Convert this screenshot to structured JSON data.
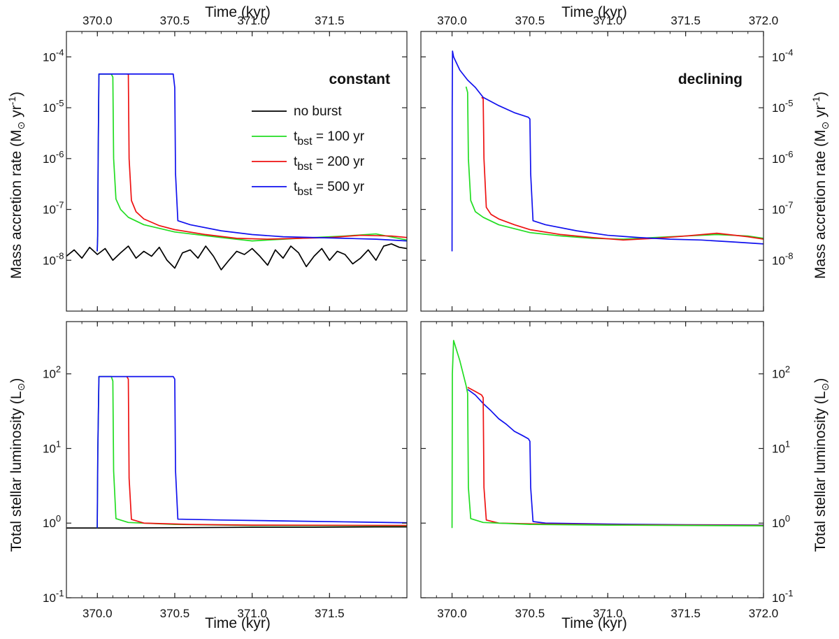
{
  "colors": {
    "no_burst": "#000000",
    "t100": "#22dd22",
    "t200": "#ee1111",
    "t500": "#1111ee"
  },
  "legend": {
    "placement": "top-right of top-left panel",
    "entries": [
      {
        "key": "no_burst",
        "main": "no burst",
        "sub": "",
        "rest": ""
      },
      {
        "key": "t100",
        "main": "t",
        "sub": "bst",
        "rest": " = 100 yr"
      },
      {
        "key": "t200",
        "main": "t",
        "sub": "bst",
        "rest": " = 200 yr"
      },
      {
        "key": "t500",
        "main": "t",
        "sub": "bst",
        "rest": " = 500 yr"
      }
    ]
  },
  "axes": {
    "time_title": "Time (kyr)",
    "mdot_title_main": "Mass accretion rate (M",
    "mdot_title_tail": " yr",
    "mdot_title_exp": "-1",
    "mdot_title_close": ")",
    "lum_title_main": "Total stellar luminosity (L",
    "lum_title_close": ")",
    "sun_symbol": "⊙"
  },
  "chart_data": [
    {
      "id": "top-left",
      "type": "line",
      "label": "constant",
      "xlabel": "Time (kyr)",
      "ylabel": "Mass accretion rate (M⊙ yr-1)",
      "xlim": [
        369.8,
        372.0
      ],
      "xticks": [
        "370.0",
        "370.5",
        "371.0",
        "371.5"
      ],
      "ylim_log10": [
        -9,
        -3.5
      ],
      "ytick_exps": [
        -8,
        -7,
        -6,
        -5,
        -4
      ],
      "yscale": "log",
      "series": [
        {
          "key": "no_burst",
          "x": [
            369.8,
            369.85,
            369.9,
            369.95,
            370.0,
            370.05,
            370.1,
            370.15,
            370.2,
            370.25,
            370.3,
            370.35,
            370.4,
            370.45,
            370.5,
            370.55,
            370.6,
            370.65,
            370.7,
            370.75,
            370.8,
            370.85,
            370.9,
            370.95,
            371.0,
            371.05,
            371.1,
            371.15,
            371.2,
            371.25,
            371.3,
            371.35,
            371.4,
            371.45,
            371.5,
            371.55,
            371.6,
            371.65,
            371.7,
            371.75,
            371.8,
            371.85,
            371.9,
            371.95,
            372.0
          ],
          "y": [
            1.2e-08,
            1.6e-08,
            1.1e-08,
            1.8e-08,
            1.3e-08,
            1.7e-08,
            1e-08,
            1.4e-08,
            1.9e-08,
            1.1e-08,
            1.5e-08,
            1.2e-08,
            1.8e-08,
            1e-08,
            7e-09,
            1.4e-08,
            1.6e-08,
            1.1e-08,
            1.9e-08,
            1.2e-08,
            6.5e-09,
            1e-08,
            1.5e-08,
            1.3e-08,
            1.7e-08,
            1.2e-08,
            8e-09,
            1.6e-08,
            1.1e-08,
            1.9e-08,
            1.4e-08,
            7.5e-09,
            1.2e-08,
            1.7e-08,
            1e-08,
            1.5e-08,
            1.3e-08,
            8.5e-09,
            1.1e-08,
            1.6e-08,
            1e-08,
            1.9e-08,
            2.1e-08,
            1.8e-08,
            1.7e-08
          ]
        },
        {
          "key": "t100",
          "x": [
            369.999,
            370.002,
            370.005,
            370.01,
            370.015,
            370.09,
            370.1,
            370.105,
            370.12,
            370.15,
            370.2,
            370.3,
            370.5,
            370.8,
            371.0,
            371.2,
            371.4,
            371.6,
            371.8,
            372.0
          ],
          "y": [
            1.5e-08,
            3e-08,
            1e-06,
            4.6e-05,
            4.6e-05,
            4.6e-05,
            4e-05,
            1e-06,
            1.6e-07,
            1e-07,
            7e-08,
            5e-08,
            3.6e-08,
            2.8e-08,
            2.4e-08,
            2.6e-08,
            2.8e-08,
            3e-08,
            3.3e-08,
            2.5e-08
          ]
        },
        {
          "key": "t200",
          "x": [
            370.19,
            370.2,
            370.205,
            370.22,
            370.25,
            370.3,
            370.4,
            370.5,
            370.7,
            370.9,
            371.1,
            371.3,
            371.5,
            371.7,
            371.9,
            372.0
          ],
          "y": [
            4.6e-05,
            4.6e-05,
            1e-06,
            1.5e-07,
            9e-08,
            6.5e-08,
            4.8e-08,
            4e-08,
            3.2e-08,
            2.7e-08,
            2.6e-08,
            2.7e-08,
            2.8e-08,
            3.1e-08,
            3e-08,
            2.8e-08
          ]
        },
        {
          "key": "t500",
          "x": [
            369.999,
            370.002,
            370.005,
            370.01,
            370.015,
            370.49,
            370.5,
            370.505,
            370.52,
            370.6,
            370.8,
            371.0,
            371.2,
            371.4,
            371.6,
            371.8,
            372.0
          ],
          "y": [
            1.5e-08,
            3e-08,
            1e-06,
            4.6e-05,
            4.6e-05,
            4.6e-05,
            2.5e-05,
            5e-07,
            6e-08,
            5e-08,
            3.8e-08,
            3.2e-08,
            2.9e-08,
            2.8e-08,
            2.7e-08,
            2.6e-08,
            2.4e-08
          ]
        }
      ]
    },
    {
      "id": "top-right",
      "type": "line",
      "label": "declining",
      "xlabel": "Time (kyr)",
      "ylabel": "Mass accretion rate (M⊙ yr-1)",
      "xlim": [
        369.8,
        372.0
      ],
      "xticks": [
        "370.0",
        "370.5",
        "371.0",
        "371.5",
        "372.0"
      ],
      "ylim_log10": [
        -9,
        -3.5
      ],
      "ytick_exps": [
        -8,
        -7,
        -6,
        -5,
        -4
      ],
      "yscale": "log",
      "series": [
        {
          "key": "t100",
          "x": [
            370.09,
            370.1,
            370.105,
            370.12,
            370.15,
            370.2,
            370.3,
            370.5,
            370.7,
            370.9,
            371.1,
            371.3,
            371.5,
            371.7,
            371.9,
            372.0
          ],
          "y": [
            2.6e-05,
            2e-05,
            1e-06,
            1.5e-07,
            9e-08,
            7e-08,
            5e-08,
            3.5e-08,
            3e-08,
            2.7e-08,
            2.6e-08,
            2.8e-08,
            3e-08,
            3.2e-08,
            3e-08,
            2.7e-08
          ]
        },
        {
          "key": "t200",
          "x": [
            370.19,
            370.2,
            370.205,
            370.22,
            370.25,
            370.3,
            370.4,
            370.5,
            370.7,
            370.9,
            371.1,
            371.3,
            371.5,
            371.7,
            371.9,
            372.0
          ],
          "y": [
            1.6e-05,
            1.5e-05,
            1e-06,
            1.1e-07,
            8e-08,
            6.5e-08,
            5e-08,
            4e-08,
            3.2e-08,
            2.8e-08,
            2.5e-08,
            2.7e-08,
            3e-08,
            3.4e-08,
            2.9e-08,
            2.6e-08
          ]
        },
        {
          "key": "t500",
          "x": [
            370.0,
            370.001,
            370.003,
            370.01,
            370.05,
            370.1,
            370.15,
            370.2,
            370.3,
            370.4,
            370.49,
            370.5,
            370.505,
            370.52,
            370.6,
            370.8,
            371.0,
            371.2,
            371.4,
            371.6,
            371.8,
            372.0
          ],
          "y": [
            1.5e-08,
            1e-05,
            0.00013,
            0.0001,
            5.5e-05,
            3.5e-05,
            2.5e-05,
            1.6e-05,
            1.1e-05,
            8e-06,
            6.5e-06,
            6e-06,
            5e-07,
            6e-08,
            5e-08,
            3.8e-08,
            3.1e-08,
            2.8e-08,
            2.6e-08,
            2.5e-08,
            2.3e-08,
            2.1e-08
          ]
        }
      ]
    },
    {
      "id": "bottom-left",
      "type": "line",
      "label": "",
      "xlabel": "Time (kyr)",
      "ylabel": "Total stellar luminosity (L⊙)",
      "xlim": [
        369.8,
        372.0
      ],
      "xticks": [
        "370.0",
        "370.5",
        "371.0",
        "371.5"
      ],
      "ylim_log10": [
        -1,
        2.7
      ],
      "ytick_exps": [
        -1,
        0,
        1,
        2
      ],
      "yscale": "log",
      "series": [
        {
          "key": "no_burst",
          "x": [
            369.8,
            370.2,
            370.6,
            371.0,
            371.4,
            371.8,
            372.0
          ],
          "y": [
            0.86,
            0.86,
            0.87,
            0.88,
            0.88,
            0.89,
            0.89
          ]
        },
        {
          "key": "t100",
          "x": [
            369.999,
            370.003,
            370.01,
            370.09,
            370.1,
            370.105,
            370.12,
            370.2,
            370.5,
            371.0,
            372.0
          ],
          "y": [
            0.86,
            10,
            92,
            92,
            80,
            5,
            1.15,
            1.02,
            0.96,
            0.93,
            0.92
          ]
        },
        {
          "key": "t200",
          "x": [
            370.19,
            370.2,
            370.205,
            370.22,
            370.3,
            370.6,
            371.0,
            372.0
          ],
          "y": [
            92,
            85,
            4,
            1.12,
            1.0,
            0.96,
            0.94,
            0.93
          ]
        },
        {
          "key": "t500",
          "x": [
            369.999,
            370.003,
            370.01,
            370.49,
            370.5,
            370.505,
            370.52,
            370.8,
            371.2,
            371.6,
            372.0
          ],
          "y": [
            0.86,
            10,
            92,
            92,
            85,
            5,
            1.13,
            1.1,
            1.07,
            1.04,
            1.01
          ]
        }
      ]
    },
    {
      "id": "bottom-right",
      "type": "line",
      "label": "",
      "xlabel": "Time (kyr)",
      "ylabel": "Total stellar luminosity (L⊙)",
      "xlim": [
        369.8,
        372.0
      ],
      "xticks": [
        "370.0",
        "370.5",
        "371.0",
        "371.5",
        "372.0"
      ],
      "ylim_log10": [
        -1,
        2.7
      ],
      "ytick_exps": [
        -1,
        0,
        1,
        2
      ],
      "yscale": "log",
      "series": [
        {
          "key": "t500",
          "x": [
            370.1,
            370.15,
            370.2,
            370.25,
            370.3,
            370.35,
            370.4,
            370.45,
            370.49,
            370.5,
            370.505,
            370.52,
            370.6,
            371.0,
            371.5,
            372.0
          ],
          "y": [
            62,
            52,
            40,
            32,
            25,
            21,
            17,
            15,
            13.5,
            12.5,
            3,
            1.05,
            1.0,
            0.97,
            0.95,
            0.94
          ]
        },
        {
          "key": "t200",
          "x": [
            370.1,
            370.15,
            370.19,
            370.2,
            370.205,
            370.22,
            370.3,
            370.6,
            371.0,
            371.5,
            372.0
          ],
          "y": [
            66,
            58,
            52,
            48,
            3,
            1.1,
            1.0,
            0.97,
            0.95,
            0.94,
            0.93
          ]
        },
        {
          "key": "t100",
          "x": [
            370.0,
            370.002,
            370.01,
            370.05,
            370.09,
            370.1,
            370.105,
            370.12,
            370.2,
            370.5,
            371.0,
            372.0
          ],
          "y": [
            0.86,
            100,
            280,
            150,
            70,
            55,
            3,
            1.15,
            1.02,
            0.96,
            0.94,
            0.92
          ]
        }
      ]
    }
  ]
}
